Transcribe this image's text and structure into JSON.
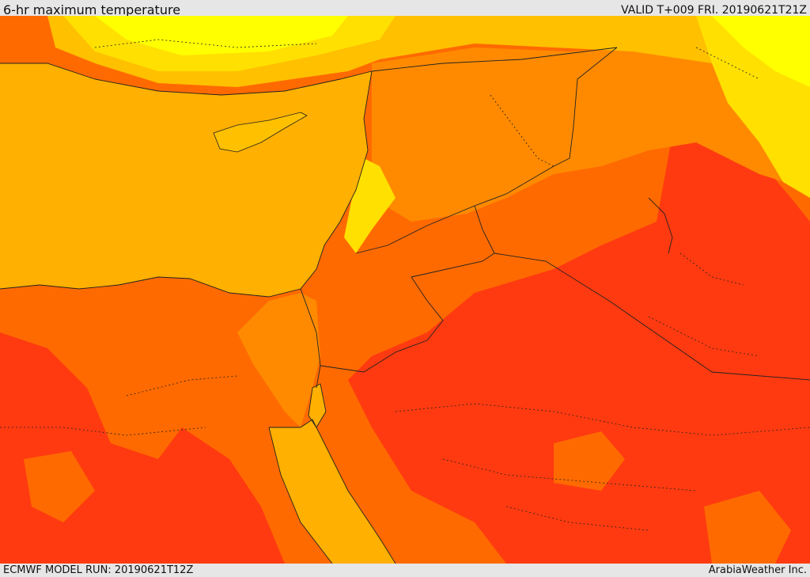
{
  "header": {
    "title": "6-hr maximum temperature",
    "valid": "VALID T+009 FRI. 20190621T21Z"
  },
  "footer": {
    "model_run": "ECMWF MODEL RUN: 20190621T12Z",
    "credit": "ArabiaWeather Inc."
  },
  "map": {
    "field": "6-hr maximum temperature",
    "palette": {
      "sea": "#ffb000",
      "warm_orange": "#ff8a00",
      "hot_orange": "#ff6a00",
      "hottest_red": "#ff3a10",
      "cool_yellow": "#ffe000",
      "coolest_yellow": "#ffff00",
      "light_orange": "#ffc000"
    }
  }
}
